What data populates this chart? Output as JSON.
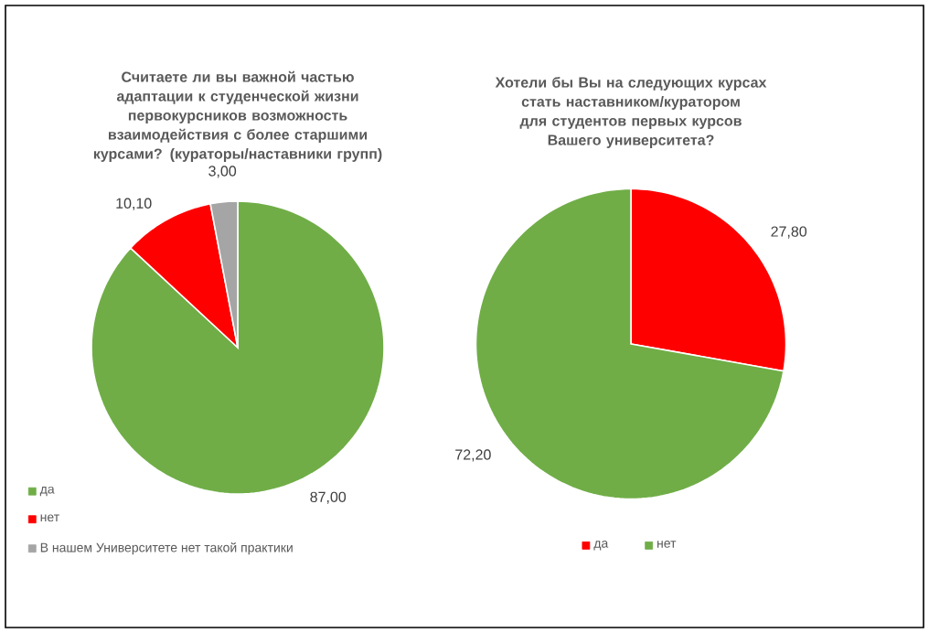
{
  "chart_data": [
    {
      "type": "pie",
      "title": "Считаете ли вы важной частью адаптации к студенческой жизни первокурсников возможность взаимодействия с более старшими курсами? (кураторы/наставники групп)",
      "categories": [
        "да",
        "нет",
        "В нашем Университете нет такой практики"
      ],
      "values": [
        87.0,
        10.1,
        3.0
      ],
      "colors": [
        "#70ad47",
        "#ff0000",
        "#a5a5a5"
      ],
      "value_labels": [
        "87,00",
        "10,10",
        "3,00"
      ],
      "legend": "bottom left"
    },
    {
      "type": "pie",
      "title": "Хотели бы Вы на следующих курсах стать наставником/куратором для студентов первых курсов Вашего университета?",
      "categories": [
        "да",
        "нет"
      ],
      "values": [
        27.8,
        72.2
      ],
      "colors": [
        "#ff0000",
        "#70ad47"
      ],
      "value_labels": [
        "27,80",
        "72,20"
      ],
      "legend": "bottom"
    }
  ]
}
